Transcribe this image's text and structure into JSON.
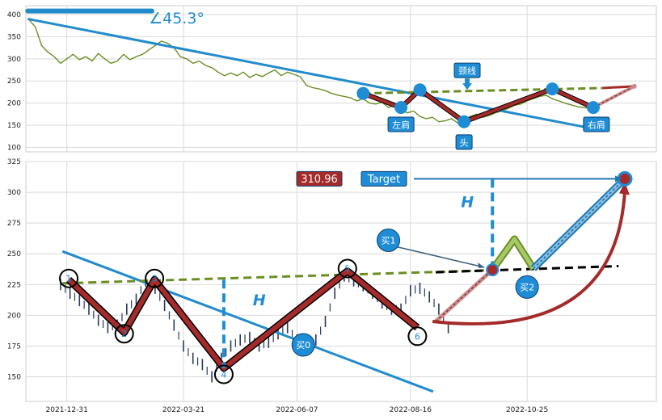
{
  "chart_data": [
    {
      "type": "line",
      "panel": "top",
      "ylim": [
        90,
        420
      ],
      "xlim": [
        0,
        100
      ],
      "yticks": [
        100,
        150,
        200,
        250,
        300,
        350,
        400
      ],
      "grid": true,
      "angle_label": "∠45.3°",
      "price_series": {
        "color": "#6b8e23",
        "x": [
          0.4,
          1.5,
          2.5,
          3.5,
          4.5,
          5.5,
          6.5,
          7.5,
          8.5,
          9.5,
          10.5,
          11.5,
          12.5,
          13.5,
          14.5,
          15.5,
          16.5,
          17.5,
          18.5,
          19.5,
          20.5,
          21.5,
          22.5,
          23.5,
          24.5,
          25.5,
          26.5,
          27.5,
          28.5,
          29.5,
          30.5,
          31.5,
          32.5,
          33.5,
          34.5,
          35.5,
          36.5,
          37.5,
          38.5,
          39.5,
          40.5,
          41.5,
          42.5,
          43.5,
          44.5,
          45.5,
          46.5,
          47.5,
          48.5,
          49.5,
          50.5,
          51.5,
          52.5,
          53.5,
          54.5,
          55.5,
          56.5,
          57.5,
          58.5,
          59.5,
          60.5,
          61.5,
          62.5,
          63.5,
          64.5,
          65.5,
          66.5,
          67.5,
          68.5,
          69.5,
          70.5,
          71.5,
          72.5,
          73.5,
          74.5,
          75.5,
          76.5,
          77.5,
          78.5,
          79.5,
          80.5,
          81.5,
          82.5,
          83.5,
          84.5,
          85.5,
          86.5,
          87.5,
          88.5,
          89.5
        ],
        "y": [
          390,
          372,
          330,
          315,
          305,
          290,
          300,
          310,
          298,
          305,
          295,
          312,
          300,
          290,
          295,
          310,
          298,
          305,
          310,
          320,
          330,
          340,
          335,
          325,
          305,
          300,
          290,
          295,
          285,
          280,
          270,
          262,
          268,
          262,
          270,
          258,
          265,
          260,
          268,
          275,
          262,
          270,
          265,
          260,
          240,
          235,
          232,
          228,
          222,
          218,
          215,
          212,
          205,
          210,
          200,
          198,
          202,
          190,
          195,
          185,
          178,
          182,
          170,
          165,
          168,
          158,
          160,
          165,
          155,
          162,
          170,
          175,
          168,
          172,
          178,
          182,
          188,
          195,
          198,
          205,
          210,
          215,
          218,
          210,
          205,
          200,
          196,
          192,
          190,
          188
        ]
      },
      "trend_line": {
        "color": "#228bcc",
        "points": [
          [
            0.3,
            390
          ],
          [
            89,
            145
          ]
        ]
      },
      "angle_marker": {
        "color": "#228bcc",
        "points": [
          [
            0.3,
            408
          ],
          [
            20,
            408
          ]
        ]
      },
      "neckline": {
        "color": "#6b8e23",
        "points": [
          [
            53.5,
            222
          ],
          [
            91.5,
            234
          ]
        ]
      },
      "neckline_ext": {
        "color": "#a52a2a",
        "points": [
          [
            91.5,
            234
          ],
          [
            96.5,
            238
          ]
        ]
      },
      "pattern_path": {
        "color": "#a52a2a",
        "points": [
          [
            53.5,
            222
          ],
          [
            59.5,
            190
          ],
          [
            62.5,
            230
          ],
          [
            69.5,
            158
          ],
          [
            83.5,
            232
          ],
          [
            90,
            190
          ],
          [
            96.5,
            238
          ]
        ]
      },
      "dashed_tail": {
        "color": "#a52a2a",
        "points": [
          [
            90,
            190
          ],
          [
            96.5,
            238
          ]
        ]
      },
      "pivot_points": [
        [
          53.5,
          222
        ],
        [
          59.5,
          190
        ],
        [
          62.5,
          230
        ],
        [
          69.5,
          158
        ],
        [
          83.5,
          232
        ],
        [
          90,
          190
        ]
      ],
      "labels": [
        {
          "text": "左肩",
          "x": 59.5,
          "y": 152
        },
        {
          "text": "头",
          "x": 69.5,
          "y": 112
        },
        {
          "text": "右肩",
          "x": 90.5,
          "y": 152
        },
        {
          "text": "颈线",
          "x": 70,
          "y": 274
        }
      ]
    },
    {
      "type": "candlestick",
      "panel": "bottom",
      "ylim": [
        130,
        325
      ],
      "xlim": [
        0,
        100
      ],
      "yticks": [
        150,
        175,
        200,
        225,
        250,
        275,
        300,
        325
      ],
      "xticks": [
        {
          "label": "2021-12-31",
          "x": 6.5
        },
        {
          "label": "2022-03-21",
          "x": 25
        },
        {
          "label": "2022-06-07",
          "x": 43
        },
        {
          "label": "2022-08-16",
          "x": 61
        },
        {
          "label": "2022-10-25",
          "x": 79.5
        }
      ],
      "grid": true,
      "price_line": {
        "color": "#2a3a5c",
        "x": [
          5.5,
          7,
          8.5,
          10,
          11.5,
          13,
          14.5,
          16,
          17.5,
          19,
          20.5,
          22,
          23.5,
          25,
          26.5,
          28,
          29.5,
          31,
          32.5,
          34,
          35.5,
          37,
          38.5,
          40,
          41.5,
          43,
          44.5,
          46,
          47.5,
          49,
          50.5,
          52,
          53.5,
          55,
          56.5,
          58,
          59.5,
          61,
          62.5,
          64,
          65.5,
          67
        ],
        "y": [
          225,
          218,
          212,
          205,
          196,
          190,
          192,
          205,
          213,
          228,
          222,
          208,
          192,
          175,
          165,
          160,
          150,
          165,
          175,
          180,
          182,
          175,
          178,
          185,
          190,
          180,
          176,
          180,
          195,
          218,
          232,
          228,
          224,
          218,
          210,
          205,
          205,
          220,
          222,
          215,
          205,
          190
        ]
      },
      "trend_line": {
        "color": "#228bcc",
        "points": [
          [
            5.8,
            252
          ],
          [
            64.6,
            138
          ]
        ]
      },
      "neckline": {
        "color": "#6b8e23",
        "points": [
          [
            5.8,
            226
          ],
          [
            73,
            236.5
          ]
        ]
      },
      "neckline_ext": {
        "color": "#000000",
        "points": [
          [
            65,
            235
          ],
          [
            94,
            240
          ]
        ]
      },
      "zigzag": {
        "color": "#a52a2a",
        "points": [
          [
            6.8,
            229
          ],
          [
            15.6,
            186
          ],
          [
            20.4,
            229
          ],
          [
            31.4,
            157
          ],
          [
            51,
            236
          ],
          [
            62.1,
            190
          ]
        ]
      },
      "pivots": [
        {
          "label": "1",
          "x": 6.8,
          "y": 230
        },
        {
          "label": "2",
          "x": 15.6,
          "y": 185
        },
        {
          "label": "3",
          "x": 20.4,
          "y": 230
        },
        {
          "label": "4",
          "x": 31.4,
          "y": 152
        },
        {
          "label": "5",
          "x": 51,
          "y": 238
        },
        {
          "label": "6",
          "x": 62.1,
          "y": 183
        }
      ],
      "buy_points": [
        {
          "label": "买0",
          "x": 44,
          "y": 176
        },
        {
          "label": "买1",
          "x": 57.5,
          "y": 261
        },
        {
          "label": "买2",
          "x": 79.5,
          "y": 223
        }
      ],
      "target": {
        "label": "Target",
        "value": "310.96",
        "x": 95,
        "y": 311
      },
      "h_label": "H",
      "h_left": {
        "x": 31.4,
        "y_from": 229,
        "y_to": 157,
        "label_x": 36,
        "label_y": 208
      },
      "h_right": {
        "x": 74,
        "y_from": 311,
        "y_to": 237,
        "label_x": 69,
        "label_y": 288
      },
      "breakout_point": {
        "x": 74,
        "y": 237
      },
      "projection": {
        "green_path": [
          [
            74,
            237
          ],
          [
            77.5,
            262
          ],
          [
            80.5,
            238
          ]
        ],
        "blue_path": [
          [
            80.5,
            238
          ],
          [
            95,
            311
          ]
        ],
        "red_dotted": [
          [
            65,
            195
          ],
          [
            74,
            237
          ]
        ],
        "red_curve": [
          [
            64.5,
            195
          ],
          [
            95,
            311
          ]
        ]
      },
      "colors": {
        "accent": "#228bcc",
        "pattern": "#a52a2a",
        "neck": "#6b8e23",
        "label_bg": "#1f8dd6",
        "target_bg": "#a52a2a"
      }
    }
  ]
}
